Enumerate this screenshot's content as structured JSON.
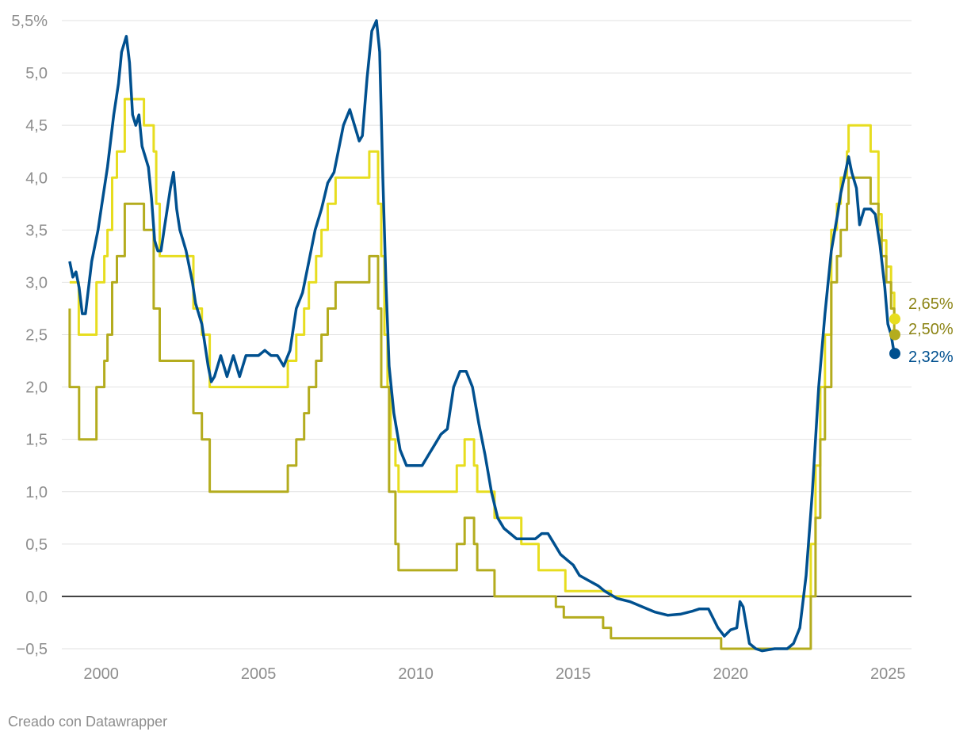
{
  "credit": "Creado con Datawrapper",
  "colors": {
    "series_a": "#e7dd1f",
    "series_b": "#b4ac1e",
    "series_c": "#00508f",
    "grid": "#e2e2e2",
    "zero": "#000000",
    "tick": "#8d8d8d"
  },
  "chart_data": {
    "type": "line",
    "title": "",
    "xlabel": "",
    "ylabel": "",
    "xlim": [
      1998.75,
      2025.75
    ],
    "ylim": [
      -0.5,
      5.5
    ],
    "grid": true,
    "y_ticks": [
      -0.5,
      0,
      0.5,
      1,
      1.5,
      2,
      2.5,
      3,
      3.5,
      4,
      4.5,
      5,
      5.5
    ],
    "y_tick_labels": [
      "−0,5",
      "0,0",
      "0,5",
      "1,0",
      "1,5",
      "2,0",
      "2,5",
      "3,0",
      "3,5",
      "4,0",
      "4,5",
      "5,0",
      "5,5%"
    ],
    "x_ticks": [
      2000,
      2005,
      2010,
      2015,
      2020,
      2025
    ],
    "x_tick_labels": [
      "2000",
      "2005",
      "2010",
      "2015",
      "2020",
      "2025"
    ],
    "series": [
      {
        "color": "#e7dd1f",
        "step": true,
        "end_label": "2,65%",
        "end_value": 2.65,
        "points": [
          [
            1999.0,
            3.0
          ],
          [
            1999.29,
            2.5
          ],
          [
            1999.85,
            3.0
          ],
          [
            2000.1,
            3.25
          ],
          [
            2000.2,
            3.5
          ],
          [
            2000.35,
            4.0
          ],
          [
            2000.5,
            4.25
          ],
          [
            2000.75,
            4.75
          ],
          [
            2001.36,
            4.5
          ],
          [
            2001.67,
            4.25
          ],
          [
            2001.75,
            3.75
          ],
          [
            2001.86,
            3.25
          ],
          [
            2002.93,
            2.75
          ],
          [
            2003.2,
            2.5
          ],
          [
            2003.45,
            2.0
          ],
          [
            2005.93,
            2.25
          ],
          [
            2006.2,
            2.5
          ],
          [
            2006.45,
            2.75
          ],
          [
            2006.6,
            3.0
          ],
          [
            2006.83,
            3.25
          ],
          [
            2007.0,
            3.5
          ],
          [
            2007.2,
            3.75
          ],
          [
            2007.45,
            4.0
          ],
          [
            2008.52,
            4.25
          ],
          [
            2008.8,
            3.75
          ],
          [
            2008.9,
            3.25
          ],
          [
            2009.0,
            2.5
          ],
          [
            2009.1,
            2.0
          ],
          [
            2009.2,
            1.5
          ],
          [
            2009.35,
            1.25
          ],
          [
            2009.45,
            1.0
          ],
          [
            2011.3,
            1.25
          ],
          [
            2011.55,
            1.5
          ],
          [
            2011.85,
            1.25
          ],
          [
            2011.95,
            1.0
          ],
          [
            2012.5,
            0.75
          ],
          [
            2013.35,
            0.5
          ],
          [
            2013.9,
            0.25
          ],
          [
            2014.75,
            0.05
          ],
          [
            2016.2,
            0.0
          ],
          [
            2022.55,
            0.5
          ],
          [
            2022.7,
            1.25
          ],
          [
            2022.85,
            2.0
          ],
          [
            2023.0,
            2.5
          ],
          [
            2023.2,
            3.5
          ],
          [
            2023.38,
            3.75
          ],
          [
            2023.5,
            4.0
          ],
          [
            2023.7,
            4.25
          ],
          [
            2023.75,
            4.5
          ],
          [
            2024.45,
            4.25
          ],
          [
            2024.7,
            3.65
          ],
          [
            2024.8,
            3.4
          ],
          [
            2024.95,
            3.15
          ],
          [
            2025.1,
            2.9
          ],
          [
            2025.2,
            2.65
          ],
          [
            2025.25,
            2.65
          ]
        ]
      },
      {
        "color": "#b4ac1e",
        "step": true,
        "end_label": "2,50%",
        "end_value": 2.5,
        "points": [
          [
            1999.0,
            2.75
          ],
          [
            1999.0,
            2.0
          ],
          [
            1999.3,
            1.5
          ],
          [
            1999.85,
            2.0
          ],
          [
            2000.1,
            2.25
          ],
          [
            2000.2,
            2.5
          ],
          [
            2000.35,
            3.0
          ],
          [
            2000.5,
            3.25
          ],
          [
            2000.75,
            3.75
          ],
          [
            2001.36,
            3.5
          ],
          [
            2001.67,
            2.75
          ],
          [
            2001.86,
            2.25
          ],
          [
            2002.93,
            1.75
          ],
          [
            2003.2,
            1.5
          ],
          [
            2003.45,
            1.0
          ],
          [
            2005.93,
            1.25
          ],
          [
            2006.2,
            1.5
          ],
          [
            2006.45,
            1.75
          ],
          [
            2006.6,
            2.0
          ],
          [
            2006.83,
            2.25
          ],
          [
            2007.0,
            2.5
          ],
          [
            2007.2,
            2.75
          ],
          [
            2007.45,
            3.0
          ],
          [
            2008.52,
            3.25
          ],
          [
            2008.8,
            2.75
          ],
          [
            2008.9,
            2.0
          ],
          [
            2009.15,
            1.0
          ],
          [
            2009.35,
            0.5
          ],
          [
            2009.45,
            0.25
          ],
          [
            2011.3,
            0.5
          ],
          [
            2011.55,
            0.75
          ],
          [
            2011.85,
            0.5
          ],
          [
            2011.95,
            0.25
          ],
          [
            2012.5,
            0.0
          ],
          [
            2014.45,
            -0.1
          ],
          [
            2014.7,
            -0.2
          ],
          [
            2015.95,
            -0.3
          ],
          [
            2016.2,
            -0.4
          ],
          [
            2019.7,
            -0.5
          ],
          [
            2022.55,
            0.0
          ],
          [
            2022.7,
            0.75
          ],
          [
            2022.85,
            1.5
          ],
          [
            2023.0,
            2.0
          ],
          [
            2023.2,
            3.0
          ],
          [
            2023.38,
            3.25
          ],
          [
            2023.5,
            3.5
          ],
          [
            2023.7,
            3.75
          ],
          [
            2023.75,
            4.0
          ],
          [
            2024.45,
            3.75
          ],
          [
            2024.7,
            3.5
          ],
          [
            2024.8,
            3.25
          ],
          [
            2024.95,
            3.0
          ],
          [
            2025.1,
            2.75
          ],
          [
            2025.2,
            2.5
          ],
          [
            2025.25,
            2.5
          ]
        ]
      },
      {
        "color": "#00508f",
        "step": false,
        "end_label": "2,32%",
        "end_value": 2.32,
        "points": [
          [
            1999.0,
            3.2
          ],
          [
            1999.1,
            3.05
          ],
          [
            1999.2,
            3.1
          ],
          [
            1999.3,
            2.95
          ],
          [
            1999.4,
            2.7
          ],
          [
            1999.5,
            2.7
          ],
          [
            1999.7,
            3.2
          ],
          [
            1999.9,
            3.5
          ],
          [
            2000.0,
            3.7
          ],
          [
            2000.2,
            4.1
          ],
          [
            2000.4,
            4.6
          ],
          [
            2000.55,
            4.9
          ],
          [
            2000.65,
            5.2
          ],
          [
            2000.8,
            5.35
          ],
          [
            2000.9,
            5.1
          ],
          [
            2001.0,
            4.6
          ],
          [
            2001.1,
            4.5
          ],
          [
            2001.2,
            4.6
          ],
          [
            2001.3,
            4.3
          ],
          [
            2001.4,
            4.2
          ],
          [
            2001.5,
            4.1
          ],
          [
            2001.6,
            3.8
          ],
          [
            2001.7,
            3.4
          ],
          [
            2001.8,
            3.3
          ],
          [
            2001.9,
            3.3
          ],
          [
            2002.0,
            3.5
          ],
          [
            2002.2,
            3.9
          ],
          [
            2002.3,
            4.05
          ],
          [
            2002.4,
            3.7
          ],
          [
            2002.5,
            3.5
          ],
          [
            2002.6,
            3.4
          ],
          [
            2002.7,
            3.3
          ],
          [
            2002.8,
            3.15
          ],
          [
            2002.9,
            3.0
          ],
          [
            2003.0,
            2.8
          ],
          [
            2003.2,
            2.6
          ],
          [
            2003.4,
            2.2
          ],
          [
            2003.5,
            2.05
          ],
          [
            2003.6,
            2.1
          ],
          [
            2003.8,
            2.3
          ],
          [
            2004.0,
            2.1
          ],
          [
            2004.2,
            2.3
          ],
          [
            2004.4,
            2.1
          ],
          [
            2004.6,
            2.3
          ],
          [
            2004.8,
            2.3
          ],
          [
            2005.0,
            2.3
          ],
          [
            2005.2,
            2.35
          ],
          [
            2005.4,
            2.3
          ],
          [
            2005.6,
            2.3
          ],
          [
            2005.8,
            2.2
          ],
          [
            2006.0,
            2.35
          ],
          [
            2006.2,
            2.75
          ],
          [
            2006.4,
            2.9
          ],
          [
            2006.6,
            3.2
          ],
          [
            2006.8,
            3.5
          ],
          [
            2007.0,
            3.7
          ],
          [
            2007.2,
            3.95
          ],
          [
            2007.4,
            4.05
          ],
          [
            2007.5,
            4.2
          ],
          [
            2007.7,
            4.5
          ],
          [
            2007.9,
            4.65
          ],
          [
            2008.0,
            4.55
          ],
          [
            2008.2,
            4.35
          ],
          [
            2008.3,
            4.4
          ],
          [
            2008.45,
            4.95
          ],
          [
            2008.6,
            5.4
          ],
          [
            2008.75,
            5.5
          ],
          [
            2008.85,
            5.2
          ],
          [
            2008.95,
            4.0
          ],
          [
            2009.05,
            3.0
          ],
          [
            2009.15,
            2.2
          ],
          [
            2009.3,
            1.75
          ],
          [
            2009.5,
            1.4
          ],
          [
            2009.7,
            1.25
          ],
          [
            2010.0,
            1.25
          ],
          [
            2010.2,
            1.25
          ],
          [
            2010.4,
            1.35
          ],
          [
            2010.6,
            1.45
          ],
          [
            2010.8,
            1.55
          ],
          [
            2011.0,
            1.6
          ],
          [
            2011.2,
            2.0
          ],
          [
            2011.4,
            2.15
          ],
          [
            2011.6,
            2.15
          ],
          [
            2011.8,
            2.0
          ],
          [
            2012.0,
            1.65
          ],
          [
            2012.2,
            1.35
          ],
          [
            2012.4,
            1.0
          ],
          [
            2012.6,
            0.75
          ],
          [
            2012.8,
            0.65
          ],
          [
            2013.0,
            0.6
          ],
          [
            2013.2,
            0.55
          ],
          [
            2013.4,
            0.55
          ],
          [
            2013.6,
            0.55
          ],
          [
            2013.8,
            0.55
          ],
          [
            2014.0,
            0.6
          ],
          [
            2014.2,
            0.6
          ],
          [
            2014.4,
            0.5
          ],
          [
            2014.6,
            0.4
          ],
          [
            2014.8,
            0.35
          ],
          [
            2015.0,
            0.3
          ],
          [
            2015.2,
            0.2
          ],
          [
            2015.5,
            0.15
          ],
          [
            2015.8,
            0.1
          ],
          [
            2016.0,
            0.05
          ],
          [
            2016.4,
            -0.02
          ],
          [
            2016.8,
            -0.05
          ],
          [
            2017.2,
            -0.1
          ],
          [
            2017.6,
            -0.15
          ],
          [
            2018.0,
            -0.18
          ],
          [
            2018.4,
            -0.17
          ],
          [
            2018.8,
            -0.14
          ],
          [
            2019.0,
            -0.12
          ],
          [
            2019.3,
            -0.12
          ],
          [
            2019.6,
            -0.3
          ],
          [
            2019.8,
            -0.38
          ],
          [
            2020.0,
            -0.32
          ],
          [
            2020.2,
            -0.3
          ],
          [
            2020.3,
            -0.05
          ],
          [
            2020.4,
            -0.1
          ],
          [
            2020.6,
            -0.45
          ],
          [
            2020.8,
            -0.5
          ],
          [
            2021.0,
            -0.52
          ],
          [
            2021.4,
            -0.5
          ],
          [
            2021.8,
            -0.5
          ],
          [
            2022.0,
            -0.45
          ],
          [
            2022.2,
            -0.3
          ],
          [
            2022.4,
            0.2
          ],
          [
            2022.6,
            1.0
          ],
          [
            2022.8,
            2.0
          ],
          [
            2023.0,
            2.7
          ],
          [
            2023.2,
            3.3
          ],
          [
            2023.4,
            3.65
          ],
          [
            2023.5,
            3.85
          ],
          [
            2023.65,
            4.05
          ],
          [
            2023.75,
            4.2
          ],
          [
            2023.85,
            4.05
          ],
          [
            2024.0,
            3.9
          ],
          [
            2024.1,
            3.55
          ],
          [
            2024.25,
            3.7
          ],
          [
            2024.45,
            3.7
          ],
          [
            2024.6,
            3.65
          ],
          [
            2024.75,
            3.35
          ],
          [
            2024.9,
            2.95
          ],
          [
            2025.0,
            2.6
          ],
          [
            2025.1,
            2.5
          ],
          [
            2025.2,
            2.32
          ],
          [
            2025.25,
            2.32
          ]
        ]
      }
    ]
  }
}
